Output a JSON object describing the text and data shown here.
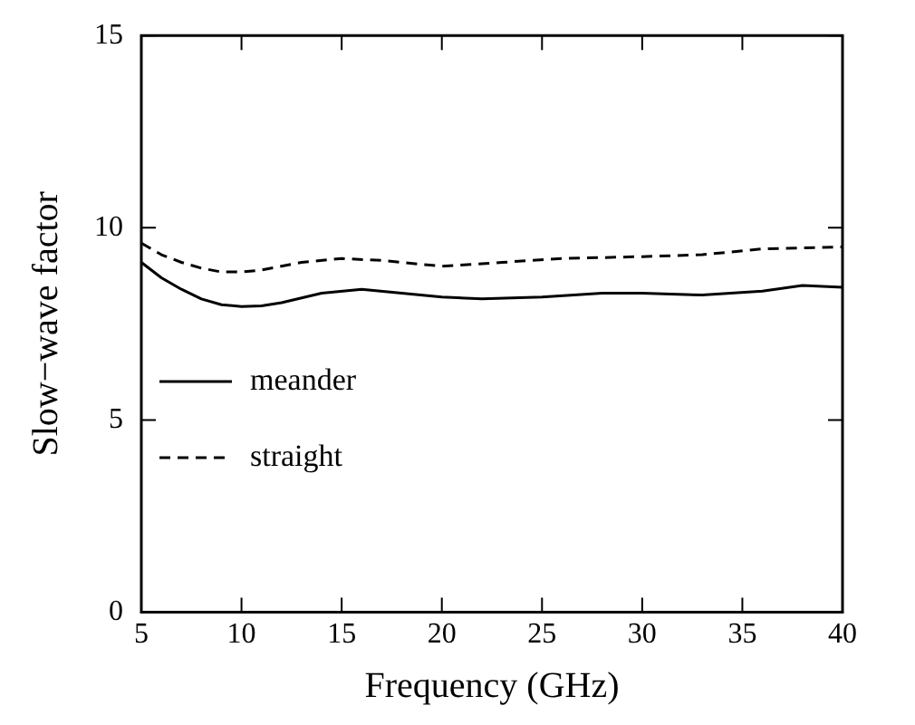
{
  "chart_data": {
    "type": "line",
    "xlabel": "Frequency (GHz)",
    "ylabel": "Slow−wave factor",
    "xlim": [
      5,
      40
    ],
    "xticks": [
      5,
      10,
      15,
      20,
      25,
      30,
      35,
      40
    ],
    "ylim": [
      0,
      15
    ],
    "yticks": [
      0,
      5,
      10,
      15
    ],
    "grid": false,
    "legend": "center left",
    "marker": "none",
    "series": [
      {
        "name": "meander",
        "color": "#000000",
        "line_style": "solid",
        "x": [
          5,
          6,
          7,
          8,
          9,
          10,
          11,
          12,
          14,
          16,
          18,
          20,
          22,
          25,
          28,
          30,
          33,
          36,
          38,
          40
        ],
        "values": [
          9.1,
          8.7,
          8.4,
          8.15,
          8.0,
          7.95,
          7.97,
          8.05,
          8.3,
          8.4,
          8.3,
          8.2,
          8.15,
          8.2,
          8.3,
          8.3,
          8.25,
          8.35,
          8.5,
          8.45
        ]
      },
      {
        "name": "straight",
        "color": "#000000",
        "line_style": "dashed",
        "x": [
          5,
          6,
          7,
          8,
          9,
          10,
          11,
          13,
          15,
          17,
          20,
          23,
          26,
          30,
          33,
          36,
          40
        ],
        "values": [
          9.6,
          9.3,
          9.1,
          8.95,
          8.85,
          8.85,
          8.9,
          9.1,
          9.2,
          9.15,
          9.0,
          9.1,
          9.2,
          9.25,
          9.3,
          9.45,
          9.5
        ]
      }
    ]
  }
}
